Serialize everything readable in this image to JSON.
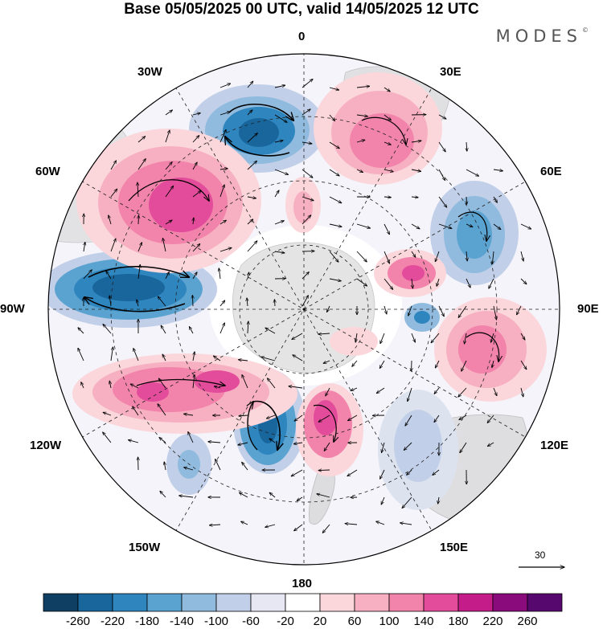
{
  "title": "Base 05/05/2025 00 UTC, valid 14/05/2025 12 UTC",
  "brand": "MODES",
  "brand_mark": "©",
  "longitude_labels": {
    "0": "0",
    "30e": "30E",
    "60e": "60E",
    "90e": "90E",
    "120e": "120E",
    "150e": "150E",
    "180": "180",
    "150w": "150W",
    "120w": "120W",
    "90w": "90W",
    "60w": "60W",
    "30w": "30W"
  },
  "reference_vector": "30",
  "colorbar": {
    "ticks": [
      "-260",
      "-220",
      "-180",
      "-140",
      "-100",
      "-60",
      "-20",
      "20",
      "60",
      "100",
      "140",
      "180",
      "220",
      "260"
    ],
    "colors": [
      "#0f3f62",
      "#19669c",
      "#2f86bf",
      "#5aa2d0",
      "#90bbde",
      "#c2cfe8",
      "#e7e7f4",
      "#ffffff",
      "#fbd7dc",
      "#f7b0c1",
      "#f283ab",
      "#e24c9a",
      "#c41d89",
      "#8a0c7c",
      "#56086e"
    ]
  },
  "colors": {
    "land": "#cfcfcf",
    "coast": "#9a9a9a",
    "grid": "#222222"
  }
}
